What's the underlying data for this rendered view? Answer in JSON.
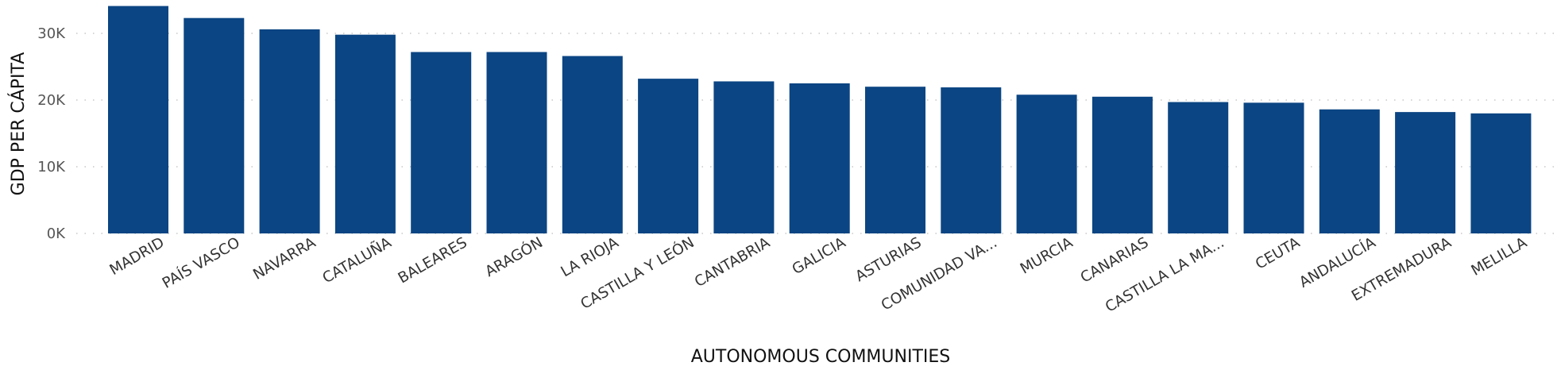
{
  "chart_data": {
    "type": "bar",
    "xlabel": "AUTONOMOUS COMMUNITIES",
    "ylabel": "GDP PER CÁPITA",
    "categories": [
      "MADRID",
      "PAÍS VASCO",
      "NAVARRA",
      "CATALUÑA",
      "BALEARES",
      "ARAGÓN",
      "LA RIOJA",
      "CASTILLA Y LEÓN",
      "CANTABRIA",
      "GALICIA",
      "ASTURIAS",
      "COMUNIDAD VA...",
      "MURCIA",
      "CANARIAS",
      "CASTILLA LA MA...",
      "CEUTA",
      "ANDALUCÍA",
      "EXTREMADURA",
      "MELILLA"
    ],
    "values": [
      34100,
      32300,
      30600,
      29800,
      27200,
      27200,
      26600,
      23200,
      22800,
      22500,
      22000,
      21900,
      20800,
      20500,
      19700,
      19600,
      18600,
      18200,
      18000
    ],
    "yticks": [
      0,
      10000,
      20000,
      30000
    ],
    "ytick_labels": [
      "0K",
      "10K",
      "20K",
      "30K"
    ],
    "ylim": [
      0,
      34500
    ],
    "grid": true,
    "legend": "none",
    "bar_color": "#0B4583",
    "grid_color": "#C8C8C8"
  }
}
